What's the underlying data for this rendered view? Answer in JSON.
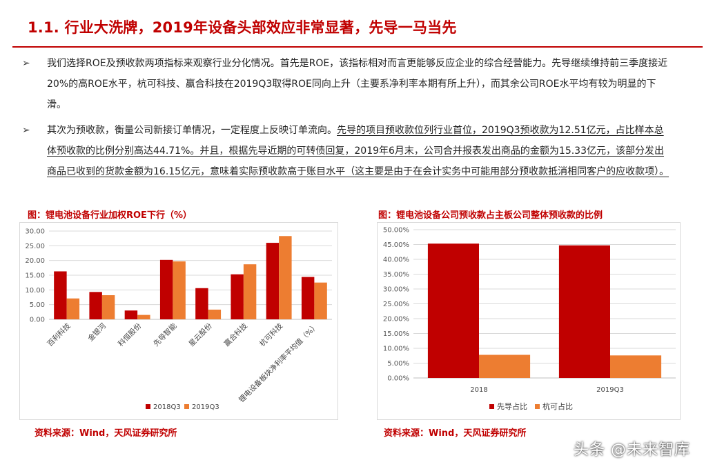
{
  "header": {
    "title": "1.1. 行业大洗牌，2019年设备头部效应非常显著，先导一马当先"
  },
  "bullets": [
    {
      "symbol": "➢",
      "text": "我们选择ROE及预收款两项指标来观察行业分化情况。首先是ROE，该指标相对而言更能够反应企业的综合经营能力。先导继续维持前三季度接近20%的高ROE水平，杭可科技、赢合科技在2019Q3取得ROE同向上升（主要系净利率本期有所上升），而其余公司ROE水平均有较为明显的下滑。"
    },
    {
      "symbol": "➢",
      "text_plain": "其次为预收款，衡量公司新接订单情况，一定程度上反映订单流向。",
      "text_highlight": "先导的项目预收款位列行业首位，2019Q3预收款为12.51亿元，占比样本总体预收款的比例分别高达44.71%。并且，根据先导近期的可转债回复，2019年6月末，公司合并报表发出商品的金额为15.33亿元，该部分发出商品已收到的货款金额为16.15亿元，意味着实际预收款高于账目水平（这主要是由于在会计实务中可能用部分预收款抵消相同客户的应收款项）。"
    }
  ],
  "figures": {
    "left_title": "图：锂电池设备行业加权ROE下行（%）",
    "right_title": "图：锂电池设备公司预收款占主板公司整体预收款的比例",
    "left_source": "资料来源：Wind，天风证券研究所",
    "right_source": "资料来源：Wind，天风证券研究所"
  },
  "chart_data": [
    {
      "type": "bar",
      "title": "",
      "categories": [
        "百利科技",
        "金银河",
        "科恒股份",
        "先导智能",
        "星云股份",
        "赢合科技",
        "杭可科技",
        "锂电设备板块净利率平均值（%）"
      ],
      "series": [
        {
          "name": "2018Q3",
          "color": "#c00000",
          "values": [
            16.3,
            9.3,
            3.0,
            20.2,
            10.6,
            15.3,
            26.0,
            14.4
          ]
        },
        {
          "name": "2019Q3",
          "color": "#ed7d31",
          "values": [
            7.1,
            8.2,
            1.5,
            19.7,
            3.3,
            18.7,
            28.3,
            12.5
          ]
        }
      ],
      "ylim": [
        0,
        30
      ],
      "yticks": [
        "0.00",
        "5.00",
        "10.00",
        "15.00",
        "20.00",
        "25.00",
        "30.00"
      ],
      "legend": "bottom",
      "grid": true
    },
    {
      "type": "bar",
      "title": "",
      "categories": [
        "2018",
        "2019Q3"
      ],
      "series": [
        {
          "name": "先导占比",
          "color": "#c00000",
          "values": [
            45.3,
            44.71
          ]
        },
        {
          "name": "杭可占比",
          "color": "#ed7d31",
          "values": [
            7.8,
            7.6
          ]
        }
      ],
      "ylim": [
        0,
        50
      ],
      "yticks": [
        "0.00%",
        "5.00%",
        "10.00%",
        "15.00%",
        "20.00%",
        "25.00%",
        "30.00%",
        "35.00%",
        "40.00%",
        "45.00%",
        "50.00%"
      ],
      "legend": "bottom",
      "grid": true
    }
  ],
  "footer": {
    "watermark": "头条 @未来智库"
  }
}
